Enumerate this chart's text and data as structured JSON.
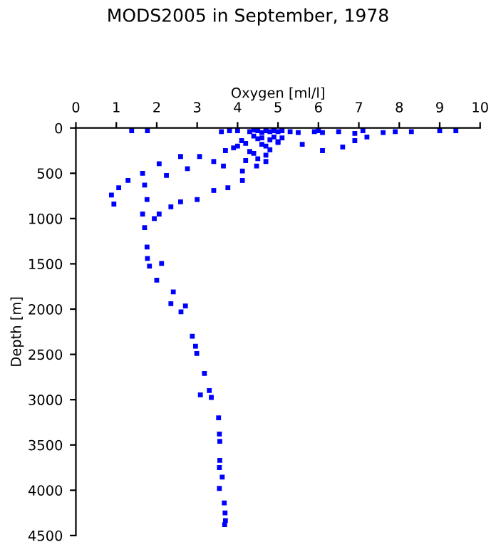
{
  "chart_data": {
    "type": "scatter",
    "title": "MODS2005 in September, 1978",
    "xlabel": "Oxygen [ml/l]",
    "ylabel": "Depth [m]",
    "xlim": [
      0,
      10
    ],
    "xticks": [
      0,
      1,
      2,
      3,
      4,
      5,
      6,
      7,
      8,
      9,
      10
    ],
    "ylim": [
      4500,
      0
    ],
    "yticks": [
      0,
      500,
      1000,
      1500,
      2000,
      2500,
      3000,
      3500,
      4000,
      4500
    ],
    "marker": "square",
    "grid": false,
    "series": [
      {
        "color": "#0000ff",
        "x": [
          1.38,
          1.77,
          3.6,
          3.8,
          4.0,
          4.3,
          4.4,
          4.5,
          4.6,
          4.7,
          4.8,
          4.9,
          5.0,
          5.1,
          5.3,
          5.5,
          5.9,
          6.0,
          6.1,
          6.5,
          6.9,
          7.1,
          7.6,
          7.9,
          8.3,
          9.0,
          9.4,
          4.4,
          4.6,
          4.8,
          5.0,
          4.2,
          4.5,
          4.7,
          4.9,
          3.9,
          4.1,
          4.3,
          4.6,
          4.8,
          5.1,
          3.7,
          4.0,
          4.4,
          4.7,
          5.0,
          6.6,
          6.1,
          7.2,
          6.9,
          5.6,
          4.5,
          4.2,
          2.59,
          2.06,
          1.65,
          1.29,
          0.88,
          0.94,
          1.06,
          1.7,
          1.76,
          1.65,
          1.7,
          1.76,
          1.82,
          4.12,
          3.76,
          3.41,
          3.0,
          2.59,
          2.35,
          2.06,
          1.94,
          3.06,
          3.41,
          3.65,
          4.12,
          4.47,
          4.7,
          2.76,
          2.24,
          1.77,
          2.12,
          2.0,
          2.41,
          2.35,
          2.71,
          2.6,
          2.88,
          2.96,
          2.99,
          3.18,
          3.3,
          3.35,
          3.08,
          3.53,
          3.55,
          3.56,
          3.56,
          3.55,
          3.62,
          3.55,
          3.67,
          3.69,
          3.7,
          3.68
        ],
        "values": [
          30,
          30,
          40,
          30,
          30,
          40,
          20,
          30,
          50,
          30,
          40,
          30,
          40,
          30,
          40,
          50,
          40,
          30,
          50,
          40,
          60,
          30,
          50,
          40,
          40,
          30,
          30,
          90,
          110,
          130,
          150,
          170,
          120,
          200,
          100,
          220,
          140,
          260,
          180,
          240,
          110,
          250,
          200,
          280,
          300,
          160,
          210,
          250,
          100,
          140,
          180,
          340,
          360,
          315,
          395,
          500,
          580,
          740,
          840,
          660,
          630,
          790,
          950,
          1100,
          1315,
          1525,
          580,
          660,
          690,
          790,
          815,
          870,
          950,
          1000,
          315,
          370,
          420,
          475,
          420,
          370,
          450,
          525,
          1440,
          1495,
          1680,
          1810,
          1940,
          1965,
          2030,
          2300,
          2410,
          2490,
          2710,
          2900,
          2975,
          2946,
          3200,
          3380,
          3460,
          3670,
          3750,
          3855,
          3980,
          4140,
          4250,
          4335,
          4380
        ]
      }
    ]
  }
}
